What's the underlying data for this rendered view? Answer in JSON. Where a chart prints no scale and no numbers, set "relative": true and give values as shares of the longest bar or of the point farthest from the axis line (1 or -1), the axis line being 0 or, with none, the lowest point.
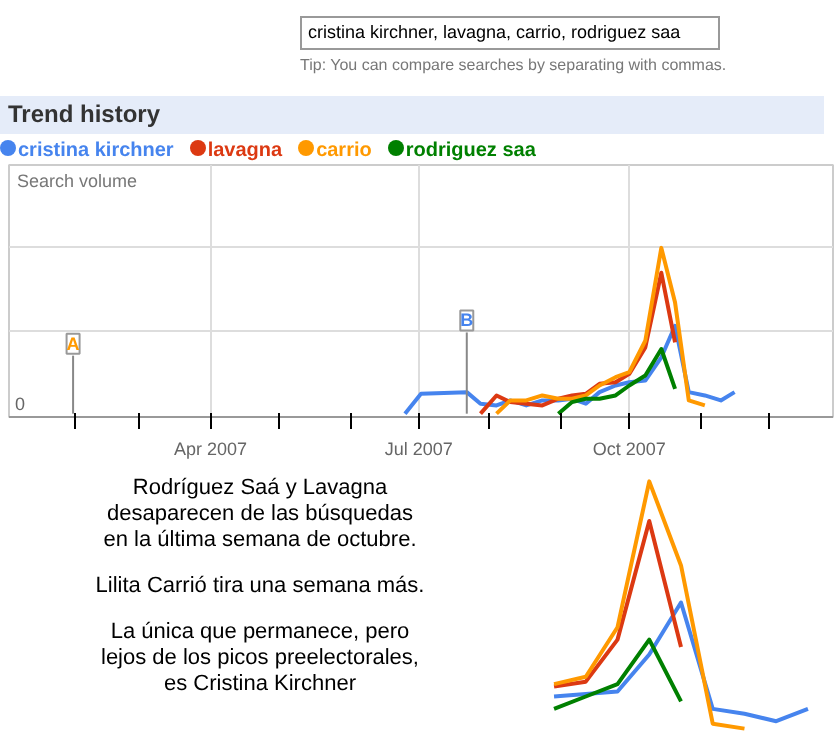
{
  "chart_data": [
    {
      "type": "line",
      "title": "Trend history",
      "subtitle": "cristina kirchner, lavagna, carrio, rodriguez saa",
      "ylabel": "Search volume",
      "relative": true,
      "grid": true,
      "legend": "top left",
      "annotations": [
        "Tip: You can compare searches by separating with commas.",
        "0"
      ],
      "ref_lines": [
        {
          "axis": "x",
          "value": "2007-01-31",
          "label": "A",
          "color": "#888888"
        },
        {
          "axis": "x",
          "value": "2007-07-22",
          "label": "B",
          "color": "#888888"
        }
      ],
      "xlim": [
        "2007-01-03",
        "2007-12-29"
      ],
      "xticks": [
        {
          "value": "2007-02-01",
          "label": null
        },
        {
          "value": "2007-03-01",
          "label": null
        },
        {
          "value": "2007-04-01",
          "label": "Apr 2007"
        },
        {
          "value": "2007-05-01",
          "label": null
        },
        {
          "value": "2007-06-01",
          "label": null
        },
        {
          "value": "2007-07-01",
          "label": "Jul 2007"
        },
        {
          "value": "2007-08-01",
          "label": null
        },
        {
          "value": "2007-09-01",
          "label": null
        },
        {
          "value": "2007-10-01",
          "label": "Oct 2007"
        },
        {
          "value": "2007-11-01",
          "label": null
        },
        {
          "value": "2007-12-01",
          "label": null
        }
      ],
      "series": [
        {
          "name": "cristina kirchner",
          "color": "#4684ee",
          "x": [
            "2007-06-25",
            "2007-07-02",
            "2007-07-22",
            "2007-07-28",
            "2007-08-04",
            "2007-08-10",
            "2007-08-17",
            "2007-08-24",
            "2007-08-31",
            "2007-09-06",
            "2007-09-12",
            "2007-09-18",
            "2007-09-25",
            "2007-10-01",
            "2007-10-08",
            "2007-10-15",
            "2007-10-21",
            "2007-10-27",
            "2007-11-03",
            "2007-11-10",
            "2007-11-16"
          ],
          "values": [
            0,
            0.12,
            0.13,
            0.06,
            0.05,
            0.08,
            0.05,
            0.08,
            0.08,
            0.09,
            0.06,
            0.13,
            0.17,
            0.19,
            0.2,
            0.34,
            0.53,
            0.13,
            0.11,
            0.08,
            0.13
          ]
        },
        {
          "name": "lavagna",
          "color": "#dc3912",
          "x": [
            "2007-07-28",
            "2007-08-04",
            "2007-08-10",
            "2007-08-17",
            "2007-08-24",
            "2007-08-31",
            "2007-09-06",
            "2007-09-12",
            "2007-09-18",
            "2007-09-25",
            "2007-10-01",
            "2007-10-08",
            "2007-10-15",
            "2007-10-21"
          ],
          "values": [
            0,
            0.11,
            0.07,
            0.06,
            0.05,
            0.09,
            0.11,
            0.12,
            0.18,
            0.19,
            0.24,
            0.4,
            0.85,
            0.43
          ]
        },
        {
          "name": "carrio",
          "color": "#ff9900",
          "x": [
            "2007-08-04",
            "2007-08-10",
            "2007-08-17",
            "2007-08-24",
            "2007-08-31",
            "2007-09-06",
            "2007-09-12",
            "2007-09-18",
            "2007-09-25",
            "2007-10-01",
            "2007-10-08",
            "2007-10-15",
            "2007-10-21",
            "2007-10-27",
            "2007-11-03"
          ],
          "values": [
            0,
            0.08,
            0.08,
            0.11,
            0.09,
            0.09,
            0.11,
            0.17,
            0.22,
            0.25,
            0.44,
            1.0,
            0.67,
            0.08,
            0.05
          ]
        },
        {
          "name": "rodriguez saa",
          "color": "#008000",
          "x": [
            "2007-08-31",
            "2007-09-06",
            "2007-09-12",
            "2007-09-18",
            "2007-09-25",
            "2007-10-01",
            "2007-10-08",
            "2007-10-15",
            "2007-10-21"
          ],
          "values": [
            0,
            0.07,
            0.09,
            0.09,
            0.11,
            0.17,
            0.23,
            0.39,
            0.15
          ]
        }
      ]
    },
    {
      "type": "line",
      "relative": true,
      "annotations": [
        "Rodríguez Saá y Lavagna\ndesaparecen de las búsquedas\nen la última semana de octubre.",
        "Lilita Carrió tira una semana más.",
        "La única que permanece, pero\nlejos de los picos preelectorales,\nes Cristina Kirchner"
      ],
      "categories": [
        null,
        null,
        null,
        null,
        null,
        null,
        null,
        null,
        null
      ],
      "series": [
        {
          "color": "#4684ee",
          "values": [
            0.13,
            0.14,
            0.15,
            0.3,
            0.51,
            0.08,
            0.06,
            0.03,
            0.08
          ]
        },
        {
          "color": "#dc3912",
          "values": [
            0.17,
            0.19,
            0.36,
            0.84,
            0.33,
            null,
            null,
            null,
            null
          ]
        },
        {
          "color": "#ff9900",
          "values": [
            0.18,
            0.21,
            0.41,
            1.0,
            0.66,
            0.02,
            0.0,
            null,
            null
          ]
        },
        {
          "color": "#008000",
          "values": [
            0.08,
            0.13,
            0.18,
            0.36,
            0.11,
            null,
            null,
            null,
            null
          ]
        }
      ]
    }
  ]
}
